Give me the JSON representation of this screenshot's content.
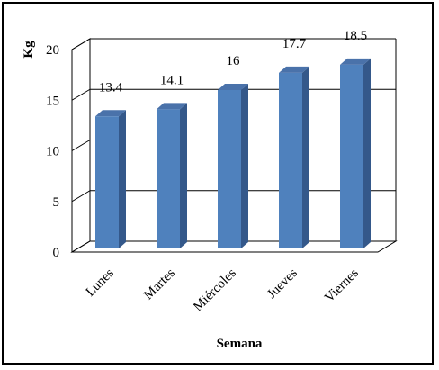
{
  "chart_data": {
    "type": "bar",
    "categories": [
      "Lunes",
      "Martes",
      "Miércoles",
      "Jueves",
      "Viernes"
    ],
    "values": [
      13.4,
      14.1,
      16,
      17.7,
      18.5
    ],
    "data_labels": [
      "13.4",
      "14.1",
      "16",
      "17.7",
      "18.5"
    ],
    "title": "",
    "xlabel": "Semana",
    "ylabel": "Kg",
    "ylim": [
      0,
      20
    ],
    "yticks": [
      0,
      5,
      10,
      15,
      20
    ],
    "grid": true,
    "legend": "none",
    "style": "3d-column",
    "colors": {
      "bar_front": "#4f81bd",
      "bar_side": "#34588a",
      "bar_top": "#4a72aa",
      "grid": "#000000",
      "wall": "#ffffff"
    }
  }
}
